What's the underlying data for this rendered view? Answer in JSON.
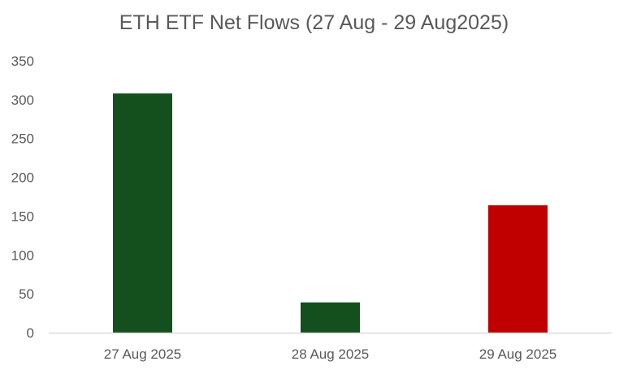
{
  "chart_data": {
    "type": "bar",
    "title": "ETH ETF Net Flows (27 Aug - 29 Aug2025)",
    "xlabel": "",
    "ylabel": "",
    "categories": [
      "27 Aug 2025",
      "28 Aug 2025",
      "29 Aug 2025"
    ],
    "values": [
      308,
      39,
      164
    ],
    "bar_colors": [
      "#14501e",
      "#14501e",
      "#c00000"
    ],
    "ylim": [
      0,
      350
    ],
    "yticks": [
      0,
      50,
      100,
      150,
      200,
      250,
      300,
      350
    ],
    "grid": false,
    "legend": "none"
  },
  "colors": {
    "text": "#595959",
    "axis": "#d9d9d9"
  }
}
